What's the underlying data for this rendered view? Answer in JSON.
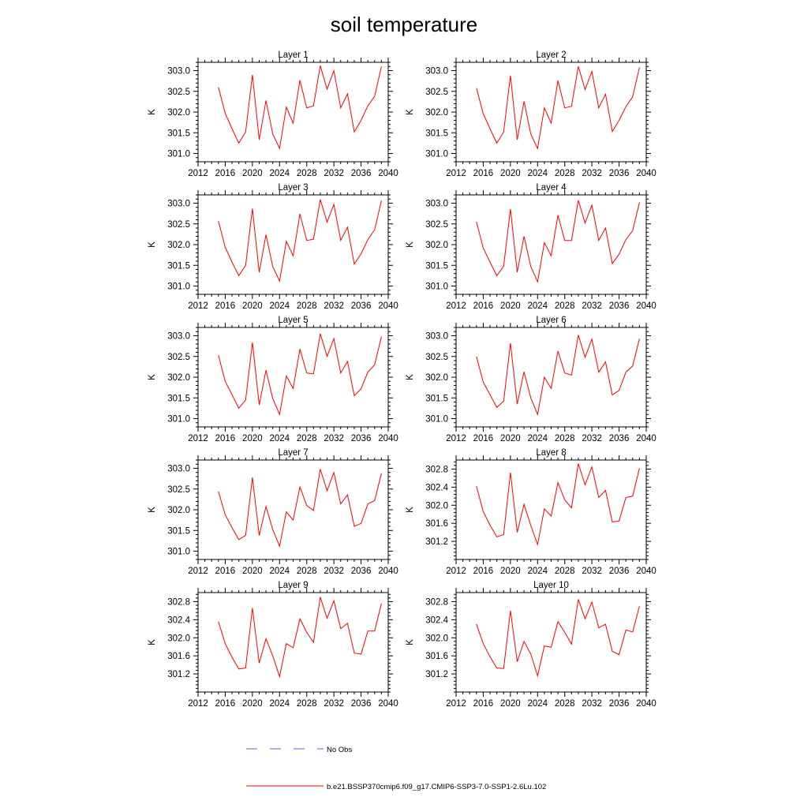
{
  "title": "soil temperature",
  "legend": [
    {
      "label": "No Obs",
      "color": "#5566cc",
      "style": "dashed"
    },
    {
      "label": "b.e21.BSSP370cmip6.f09_g17.CMIP6-SSP3-7.0-SSP1-2.6Lu.102",
      "color": "#ff0000",
      "style": "solid"
    }
  ],
  "chart_data": [
    {
      "type": "line",
      "title": "Layer 1",
      "ylabel": "K",
      "xlim": [
        2012,
        2040
      ],
      "xticks": [
        2012,
        2016,
        2020,
        2024,
        2028,
        2032,
        2036,
        2040
      ],
      "ylim": [
        300.8,
        303.2
      ],
      "yticks": [
        "301.0",
        "301.5",
        "302.0",
        "302.5",
        "303.0"
      ],
      "x": [
        2015,
        2016,
        2017,
        2018,
        2019,
        2020,
        2021,
        2022,
        2023,
        2024,
        2025,
        2026,
        2027,
        2028,
        2029,
        2030,
        2031,
        2032,
        2033,
        2034,
        2035,
        2036,
        2037,
        2038,
        2039
      ],
      "series": [
        {
          "values": [
            302.6,
            301.97,
            301.6,
            301.25,
            301.52,
            302.9,
            301.33,
            302.28,
            301.47,
            301.12,
            302.12,
            301.73,
            302.77,
            302.1,
            302.15,
            303.12,
            302.55,
            303.0,
            302.1,
            302.44,
            301.52,
            301.8,
            302.15,
            302.38,
            303.1
          ]
        }
      ]
    },
    {
      "type": "line",
      "title": "Layer 2",
      "ylabel": "K",
      "xlim": [
        2012,
        2040
      ],
      "xticks": [
        2012,
        2016,
        2020,
        2024,
        2028,
        2032,
        2036,
        2040
      ],
      "ylim": [
        300.8,
        303.2
      ],
      "yticks": [
        "301.0",
        "301.5",
        "302.0",
        "302.5",
        "303.0"
      ],
      "x": [
        2015,
        2016,
        2017,
        2018,
        2019,
        2020,
        2021,
        2022,
        2023,
        2024,
        2025,
        2026,
        2027,
        2028,
        2029,
        2030,
        2031,
        2032,
        2033,
        2034,
        2035,
        2036,
        2037,
        2038,
        2039
      ],
      "series": [
        {
          "values": [
            302.58,
            301.96,
            301.6,
            301.25,
            301.52,
            302.88,
            301.33,
            302.26,
            301.47,
            301.12,
            302.1,
            301.73,
            302.76,
            302.1,
            302.14,
            303.1,
            302.54,
            302.98,
            302.1,
            302.43,
            301.53,
            301.8,
            302.13,
            302.37,
            303.08
          ]
        }
      ]
    },
    {
      "type": "line",
      "title": "Layer 3",
      "ylabel": "K",
      "xlim": [
        2012,
        2040
      ],
      "xticks": [
        2012,
        2016,
        2020,
        2024,
        2028,
        2032,
        2036,
        2040
      ],
      "ylim": [
        300.8,
        303.2
      ],
      "yticks": [
        "301.0",
        "301.5",
        "302.0",
        "302.5",
        "303.0"
      ],
      "x": [
        2015,
        2016,
        2017,
        2018,
        2019,
        2020,
        2021,
        2022,
        2023,
        2024,
        2025,
        2026,
        2027,
        2028,
        2029,
        2030,
        2031,
        2032,
        2033,
        2034,
        2035,
        2036,
        2037,
        2038,
        2039
      ],
      "series": [
        {
          "values": [
            302.57,
            301.94,
            301.58,
            301.25,
            301.5,
            302.87,
            301.33,
            302.24,
            301.47,
            301.12,
            302.08,
            301.73,
            302.74,
            302.1,
            302.13,
            303.09,
            302.54,
            302.97,
            302.1,
            302.42,
            301.53,
            301.78,
            302.12,
            302.36,
            303.06
          ]
        }
      ]
    },
    {
      "type": "line",
      "title": "Layer 4",
      "ylabel": "K",
      "xlim": [
        2012,
        2040
      ],
      "xticks": [
        2012,
        2016,
        2020,
        2024,
        2028,
        2032,
        2036,
        2040
      ],
      "ylim": [
        300.8,
        303.2
      ],
      "yticks": [
        "301.0",
        "301.5",
        "302.0",
        "302.5",
        "303.0"
      ],
      "x": [
        2015,
        2016,
        2017,
        2018,
        2019,
        2020,
        2021,
        2022,
        2023,
        2024,
        2025,
        2026,
        2027,
        2028,
        2029,
        2030,
        2031,
        2032,
        2033,
        2034,
        2035,
        2036,
        2037,
        2038,
        2039
      ],
      "series": [
        {
          "values": [
            302.55,
            301.92,
            301.58,
            301.25,
            301.48,
            302.86,
            301.33,
            302.2,
            301.47,
            301.1,
            302.05,
            301.73,
            302.71,
            302.1,
            302.1,
            303.07,
            302.52,
            302.95,
            302.1,
            302.4,
            301.54,
            301.77,
            302.12,
            302.34,
            303.02
          ]
        }
      ]
    },
    {
      "type": "line",
      "title": "Layer 5",
      "ylabel": "K",
      "xlim": [
        2012,
        2040
      ],
      "xticks": [
        2012,
        2016,
        2020,
        2024,
        2028,
        2032,
        2036,
        2040
      ],
      "ylim": [
        300.8,
        303.2
      ],
      "yticks": [
        "301.0",
        "301.5",
        "302.0",
        "302.5",
        "303.0"
      ],
      "x": [
        2015,
        2016,
        2017,
        2018,
        2019,
        2020,
        2021,
        2022,
        2023,
        2024,
        2025,
        2026,
        2027,
        2028,
        2029,
        2030,
        2031,
        2032,
        2033,
        2034,
        2035,
        2036,
        2037,
        2038,
        2039
      ],
      "series": [
        {
          "values": [
            302.53,
            301.9,
            301.58,
            301.25,
            301.45,
            302.84,
            301.33,
            302.17,
            301.48,
            301.1,
            302.03,
            301.73,
            302.68,
            302.1,
            302.08,
            303.05,
            302.5,
            302.93,
            302.1,
            302.38,
            301.55,
            301.72,
            302.12,
            302.3,
            302.98
          ]
        }
      ]
    },
    {
      "type": "line",
      "title": "Layer 6",
      "ylabel": "K",
      "xlim": [
        2012,
        2040
      ],
      "xticks": [
        2012,
        2016,
        2020,
        2024,
        2028,
        2032,
        2036,
        2040
      ],
      "ylim": [
        300.8,
        303.2
      ],
      "yticks": [
        "301.0",
        "301.5",
        "302.0",
        "302.5",
        "303.0"
      ],
      "x": [
        2015,
        2016,
        2017,
        2018,
        2019,
        2020,
        2021,
        2022,
        2023,
        2024,
        2025,
        2026,
        2027,
        2028,
        2029,
        2030,
        2031,
        2032,
        2033,
        2034,
        2035,
        2036,
        2037,
        2038,
        2039
      ],
      "series": [
        {
          "values": [
            302.5,
            301.88,
            301.58,
            301.27,
            301.42,
            302.82,
            301.35,
            302.13,
            301.5,
            301.1,
            302.0,
            301.73,
            302.63,
            302.1,
            302.05,
            303.02,
            302.48,
            302.92,
            302.12,
            302.37,
            301.57,
            301.68,
            302.12,
            302.27,
            302.93
          ]
        }
      ]
    },
    {
      "type": "line",
      "title": "Layer 7",
      "ylabel": "K",
      "xlim": [
        2012,
        2040
      ],
      "xticks": [
        2012,
        2016,
        2020,
        2024,
        2028,
        2032,
        2036,
        2040
      ],
      "ylim": [
        300.8,
        303.2
      ],
      "yticks": [
        "301.0",
        "301.5",
        "302.0",
        "302.5",
        "303.0"
      ],
      "x": [
        2015,
        2016,
        2017,
        2018,
        2019,
        2020,
        2021,
        2022,
        2023,
        2024,
        2025,
        2026,
        2027,
        2028,
        2029,
        2030,
        2031,
        2032,
        2033,
        2034,
        2035,
        2036,
        2037,
        2038,
        2039
      ],
      "series": [
        {
          "values": [
            302.44,
            301.88,
            301.57,
            301.28,
            301.38,
            302.78,
            301.38,
            302.08,
            301.52,
            301.12,
            301.95,
            301.75,
            302.55,
            302.1,
            301.98,
            302.98,
            302.46,
            302.9,
            302.14,
            302.36,
            301.6,
            301.67,
            302.14,
            302.22,
            302.88
          ]
        }
      ]
    },
    {
      "type": "line",
      "title": "Layer 8",
      "ylabel": "K",
      "xlim": [
        2012,
        2040
      ],
      "xticks": [
        2012,
        2016,
        2020,
        2024,
        2028,
        2032,
        2036,
        2040
      ],
      "ylim": [
        300.8,
        303.0
      ],
      "yticks": [
        "301.2",
        "301.6",
        "302.0",
        "302.4",
        "302.8"
      ],
      "x": [
        2015,
        2016,
        2017,
        2018,
        2019,
        2020,
        2021,
        2022,
        2023,
        2024,
        2025,
        2026,
        2027,
        2028,
        2029,
        2030,
        2031,
        2032,
        2033,
        2034,
        2035,
        2036,
        2037,
        2038,
        2039
      ],
      "series": [
        {
          "values": [
            302.42,
            301.86,
            301.56,
            301.3,
            301.35,
            302.72,
            301.4,
            302.02,
            301.55,
            301.13,
            301.92,
            301.76,
            302.5,
            302.12,
            301.94,
            302.92,
            302.45,
            302.85,
            302.17,
            302.33,
            301.63,
            301.65,
            302.17,
            302.2,
            302.82
          ]
        }
      ]
    },
    {
      "type": "line",
      "title": "Layer 9",
      "ylabel": "K",
      "xlim": [
        2012,
        2040
      ],
      "xticks": [
        2012,
        2016,
        2020,
        2024,
        2028,
        2032,
        2036,
        2040
      ],
      "ylim": [
        300.8,
        303.0
      ],
      "yticks": [
        "301.2",
        "301.6",
        "302.0",
        "302.4",
        "302.8"
      ],
      "x": [
        2015,
        2016,
        2017,
        2018,
        2019,
        2020,
        2021,
        2022,
        2023,
        2024,
        2025,
        2026,
        2027,
        2028,
        2029,
        2030,
        2031,
        2032,
        2033,
        2034,
        2035,
        2036,
        2037,
        2038,
        2039
      ],
      "series": [
        {
          "values": [
            302.36,
            301.87,
            301.57,
            301.31,
            301.33,
            302.66,
            301.44,
            301.98,
            301.6,
            301.14,
            301.87,
            301.78,
            302.42,
            302.12,
            301.9,
            302.9,
            302.43,
            302.82,
            302.2,
            302.32,
            301.66,
            301.64,
            302.15,
            302.15,
            302.76
          ]
        }
      ]
    },
    {
      "type": "line",
      "title": "Layer 10",
      "ylabel": "K",
      "xlim": [
        2012,
        2040
      ],
      "xticks": [
        2012,
        2016,
        2020,
        2024,
        2028,
        2032,
        2036,
        2040
      ],
      "ylim": [
        300.8,
        303.0
      ],
      "yticks": [
        "301.2",
        "301.6",
        "302.0",
        "302.4",
        "302.8"
      ],
      "x": [
        2015,
        2016,
        2017,
        2018,
        2019,
        2020,
        2021,
        2022,
        2023,
        2024,
        2025,
        2026,
        2027,
        2028,
        2029,
        2030,
        2031,
        2032,
        2033,
        2034,
        2035,
        2036,
        2037,
        2038,
        2039
      ],
      "series": [
        {
          "values": [
            302.3,
            301.87,
            301.58,
            301.33,
            301.32,
            302.6,
            301.47,
            301.92,
            301.64,
            301.16,
            301.82,
            301.79,
            302.36,
            302.12,
            301.86,
            302.85,
            302.42,
            302.79,
            302.22,
            302.3,
            301.7,
            301.63,
            302.17,
            302.13,
            302.7
          ]
        }
      ]
    }
  ]
}
